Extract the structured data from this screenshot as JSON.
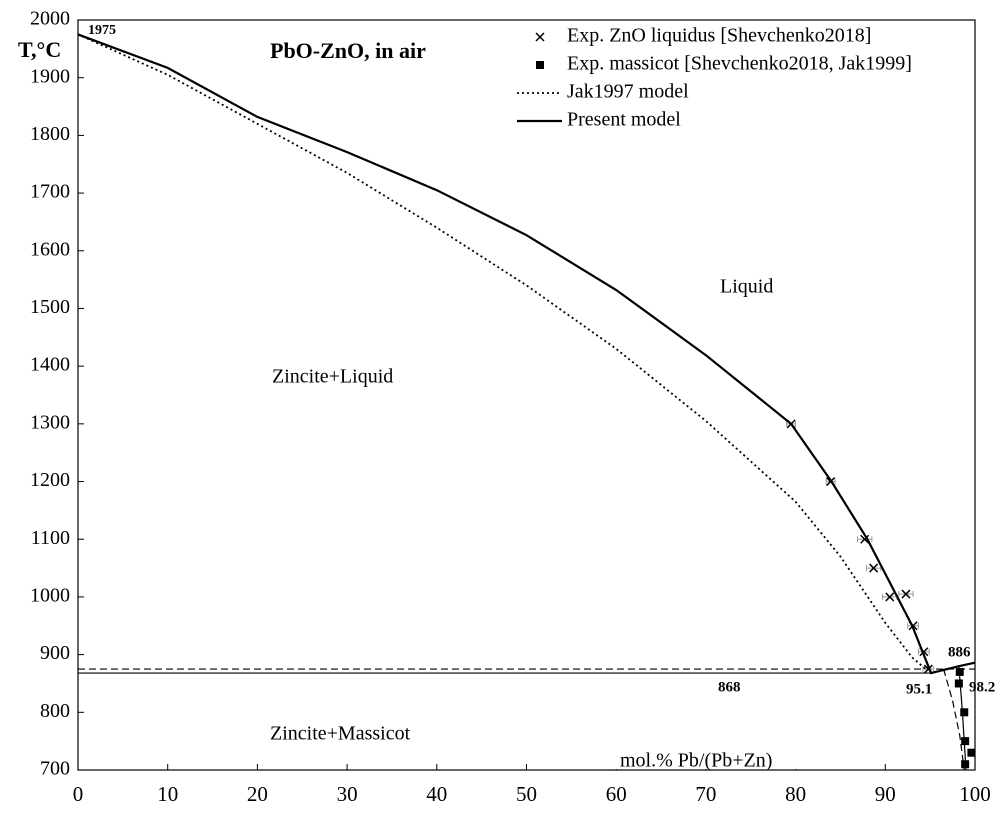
{
  "chart_data": {
    "type": "phase-diagram",
    "title": "PbO-ZnO, in air",
    "ylabel": "T,°C",
    "xlabel": "mol.% Pb/(Pb+Zn)",
    "xlim": [
      0,
      100
    ],
    "xticks": [
      0,
      10,
      20,
      30,
      40,
      50,
      60,
      70,
      80,
      90,
      100
    ],
    "ylim": [
      700,
      2000
    ],
    "yticks": [
      700,
      800,
      900,
      1000,
      1100,
      1200,
      1300,
      1400,
      1500,
      1600,
      1700,
      1800,
      1900,
      2000
    ],
    "legend": "upper right",
    "series": [
      {
        "name": "Exp. ZnO liquidus [Shevchenko2018]",
        "type": "scatter",
        "marker": "x",
        "color": "#000000",
        "x": [
          79.5,
          83.9,
          87.7,
          88.7,
          90.5,
          92.3,
          93.1,
          94.3,
          94.8
        ],
        "values": [
          1300,
          1200,
          1100,
          1050,
          1000,
          1005,
          950,
          905,
          875
        ],
        "xerr": [
          0.5,
          0.5,
          0.8,
          0.8,
          0.8,
          0.8,
          0.6,
          0.6,
          0.6
        ]
      },
      {
        "name": "Exp. massicot [Shevchenko2018, Jak1999]",
        "type": "scatter",
        "marker": "square",
        "color": "#000000",
        "x": [
          98.3,
          98.2,
          98.8,
          98.9,
          99.6,
          98.9
        ],
        "values": [
          870,
          850,
          800,
          750,
          730,
          710
        ]
      },
      {
        "name": "Jak1997 model",
        "type": "line",
        "dash": "dotted",
        "color": "#000000",
        "x": [
          0,
          10,
          20,
          30,
          40,
          50,
          60,
          70,
          80,
          85,
          90,
          93,
          94.5
        ],
        "values": [
          1975,
          1905,
          1820,
          1735,
          1640,
          1540,
          1430,
          1305,
          1165,
          1070,
          955,
          895,
          875
        ]
      },
      {
        "name": "Present model",
        "type": "line",
        "dash": "solid",
        "color": "#000000",
        "x": [
          0,
          10,
          20,
          30,
          40,
          50,
          60,
          70,
          79.5,
          84,
          88,
          91,
          93,
          95.1,
          98.2,
          100
        ],
        "values": [
          1975,
          1917,
          1832,
          1771,
          1705,
          1627,
          1532,
          1419,
          1300,
          1200,
          1100,
          1010,
          950,
          868,
          880,
          886
        ]
      }
    ],
    "boundaries": [
      {
        "dash": "solid",
        "x": [
          0,
          95.1
        ],
        "values": [
          868,
          868
        ]
      },
      {
        "dash": "dashed",
        "x": [
          0,
          100
        ],
        "values": [
          875,
          875
        ]
      },
      {
        "dash": "dashed",
        "x": [
          96.5,
          97.5,
          98.3,
          98.8
        ],
        "values": [
          875,
          820,
          760,
          700
        ]
      },
      {
        "dash": "solid",
        "x": [
          98.2,
          98.6,
          99
        ],
        "values": [
          880,
          800,
          700
        ]
      }
    ],
    "annotations": [
      "1975",
      "Liquid",
      "Zincite+Liquid",
      "Zincite+Massicot",
      "868",
      "886",
      "95.1",
      "98.2"
    ]
  }
}
